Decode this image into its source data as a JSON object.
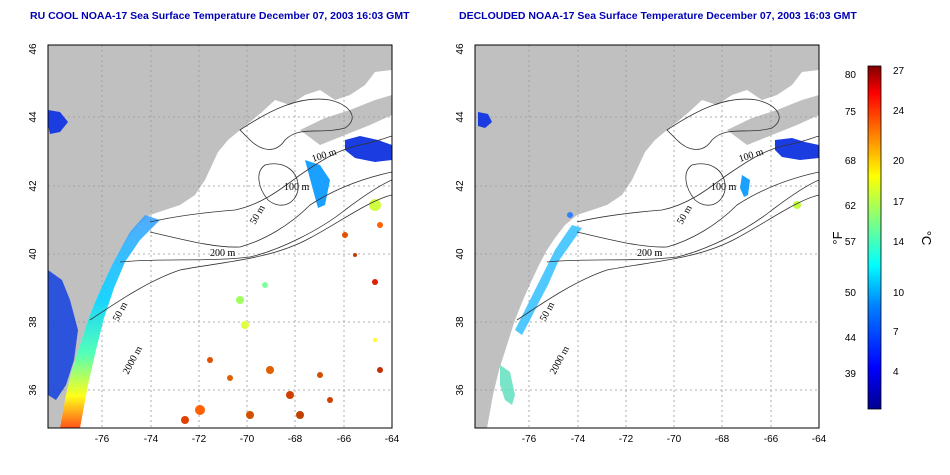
{
  "panels": [
    {
      "title": "RU COOL NOAA-17 Sea Surface Temperature December 07, 2003 16:03 GMT",
      "x_ticks": [
        "-76",
        "-74",
        "-72",
        "-70",
        "-68",
        "-66",
        "-64"
      ],
      "y_ticks": [
        "36",
        "38",
        "40",
        "42",
        "44",
        "46"
      ],
      "contour_labels": [
        "100 m",
        "100 m",
        "50 m",
        "200 m",
        "50 m",
        "2000 m"
      ]
    },
    {
      "title": "DECLOUDED NOAA-17 Sea Surface Temperature December 07, 2003 16:03 GMT",
      "x_ticks": [
        "-76",
        "-74",
        "-72",
        "-70",
        "-68",
        "-66",
        "-64"
      ],
      "y_ticks": [
        "36",
        "38",
        "40",
        "42",
        "44",
        "46"
      ],
      "contour_labels": [
        "100 m",
        "100 m",
        "50 m",
        "200 m",
        "50 m",
        "2000 m"
      ]
    }
  ],
  "colorbar": {
    "fahrenheit_ticks": [
      "80",
      "75",
      "68",
      "62",
      "57",
      "50",
      "44",
      "39"
    ],
    "celsius_ticks": [
      "27",
      "24",
      "20",
      "17",
      "14",
      "10",
      "7",
      "4"
    ],
    "fahrenheit_unit": "°F",
    "celsius_unit": "°C",
    "gradient_colors": [
      "#00008f",
      "#0000ff",
      "#0080ff",
      "#00ffff",
      "#80ff80",
      "#ffff00",
      "#ff8000",
      "#ff0000",
      "#800000"
    ]
  },
  "colors": {
    "land": "#c0c0c0",
    "ocean": "#ffffff",
    "title": "#0000b4"
  }
}
